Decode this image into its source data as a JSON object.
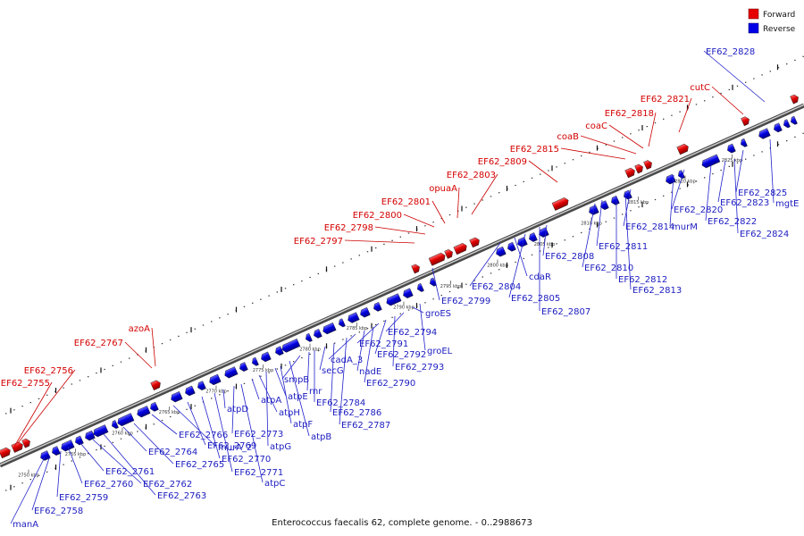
{
  "legend": [
    {
      "label": "Forward",
      "color": "#e60000"
    },
    {
      "label": "Reverse",
      "color": "#0000e6"
    }
  ],
  "caption": "Enterococcus faecalis 62, complete genome. - 0..2988673",
  "scale_unit": "kbp",
  "scale_ticks": [
    2750,
    2755,
    2760,
    2765,
    2770,
    2775,
    2780,
    2785,
    2790,
    2795,
    2800,
    2805,
    2810,
    2815,
    2820,
    2825
  ],
  "forward_genes": [
    {
      "label": "EF62_2755"
    },
    {
      "label": "EF62_2756"
    },
    {
      "label": "EF62_2767"
    },
    {
      "label": "azoA"
    },
    {
      "label": "EF62_2797"
    },
    {
      "label": "EF62_2798"
    },
    {
      "label": "EF62_2800"
    },
    {
      "label": "EF62_2801"
    },
    {
      "label": "opuaA"
    },
    {
      "label": "EF62_2803"
    },
    {
      "label": "EF62_2809"
    },
    {
      "label": "EF62_2815"
    },
    {
      "label": "coaB"
    },
    {
      "label": "coaC"
    },
    {
      "label": "EF62_2818"
    },
    {
      "label": "EF62_2821"
    },
    {
      "label": "cutC"
    }
  ],
  "reverse_genes": [
    {
      "label": "manA"
    },
    {
      "label": "EF62_2758"
    },
    {
      "label": "EF62_2759"
    },
    {
      "label": "EF62_2760"
    },
    {
      "label": "EF62_2761"
    },
    {
      "label": "EF62_2762"
    },
    {
      "label": "EF62_2763"
    },
    {
      "label": "EF62_2764"
    },
    {
      "label": "EF62_2765"
    },
    {
      "label": "EF62_2766"
    },
    {
      "label": "murA_2"
    },
    {
      "label": "EF62_2769"
    },
    {
      "label": "EF62_2770"
    },
    {
      "label": "EF62_2771"
    },
    {
      "label": "atpD"
    },
    {
      "label": "EF62_2773"
    },
    {
      "label": "atpC"
    },
    {
      "label": "atpA"
    },
    {
      "label": "atpH"
    },
    {
      "label": "atpG"
    },
    {
      "label": "atpE"
    },
    {
      "label": "atpF"
    },
    {
      "label": "atpB"
    },
    {
      "label": "smpB"
    },
    {
      "label": "rnr"
    },
    {
      "label": "EF62_2784"
    },
    {
      "label": "secG"
    },
    {
      "label": "EF62_2786"
    },
    {
      "label": "EF62_2787"
    },
    {
      "label": "cadA_3"
    },
    {
      "label": "nadE"
    },
    {
      "label": "EF62_2790"
    },
    {
      "label": "EF62_2791"
    },
    {
      "label": "EF62_2792"
    },
    {
      "label": "EF62_2793"
    },
    {
      "label": "EF62_2794"
    },
    {
      "label": "groES"
    },
    {
      "label": "groEL"
    },
    {
      "label": "EF62_2799"
    },
    {
      "label": "EF62_2804"
    },
    {
      "label": "cdaR"
    },
    {
      "label": "EF62_2805"
    },
    {
      "label": "EF62_2807"
    },
    {
      "label": "EF62_2808"
    },
    {
      "label": "EF62_2810"
    },
    {
      "label": "EF62_2811"
    },
    {
      "label": "EF62_2812"
    },
    {
      "label": "EF62_2813"
    },
    {
      "label": "EF62_2814"
    },
    {
      "label": "murM"
    },
    {
      "label": "EF62_2820"
    },
    {
      "label": "EF62_2822"
    },
    {
      "label": "EF62_2823"
    },
    {
      "label": "EF62_2824"
    },
    {
      "label": "EF62_2825"
    },
    {
      "label": "mgtE"
    },
    {
      "label": "EF62_2828"
    }
  ]
}
